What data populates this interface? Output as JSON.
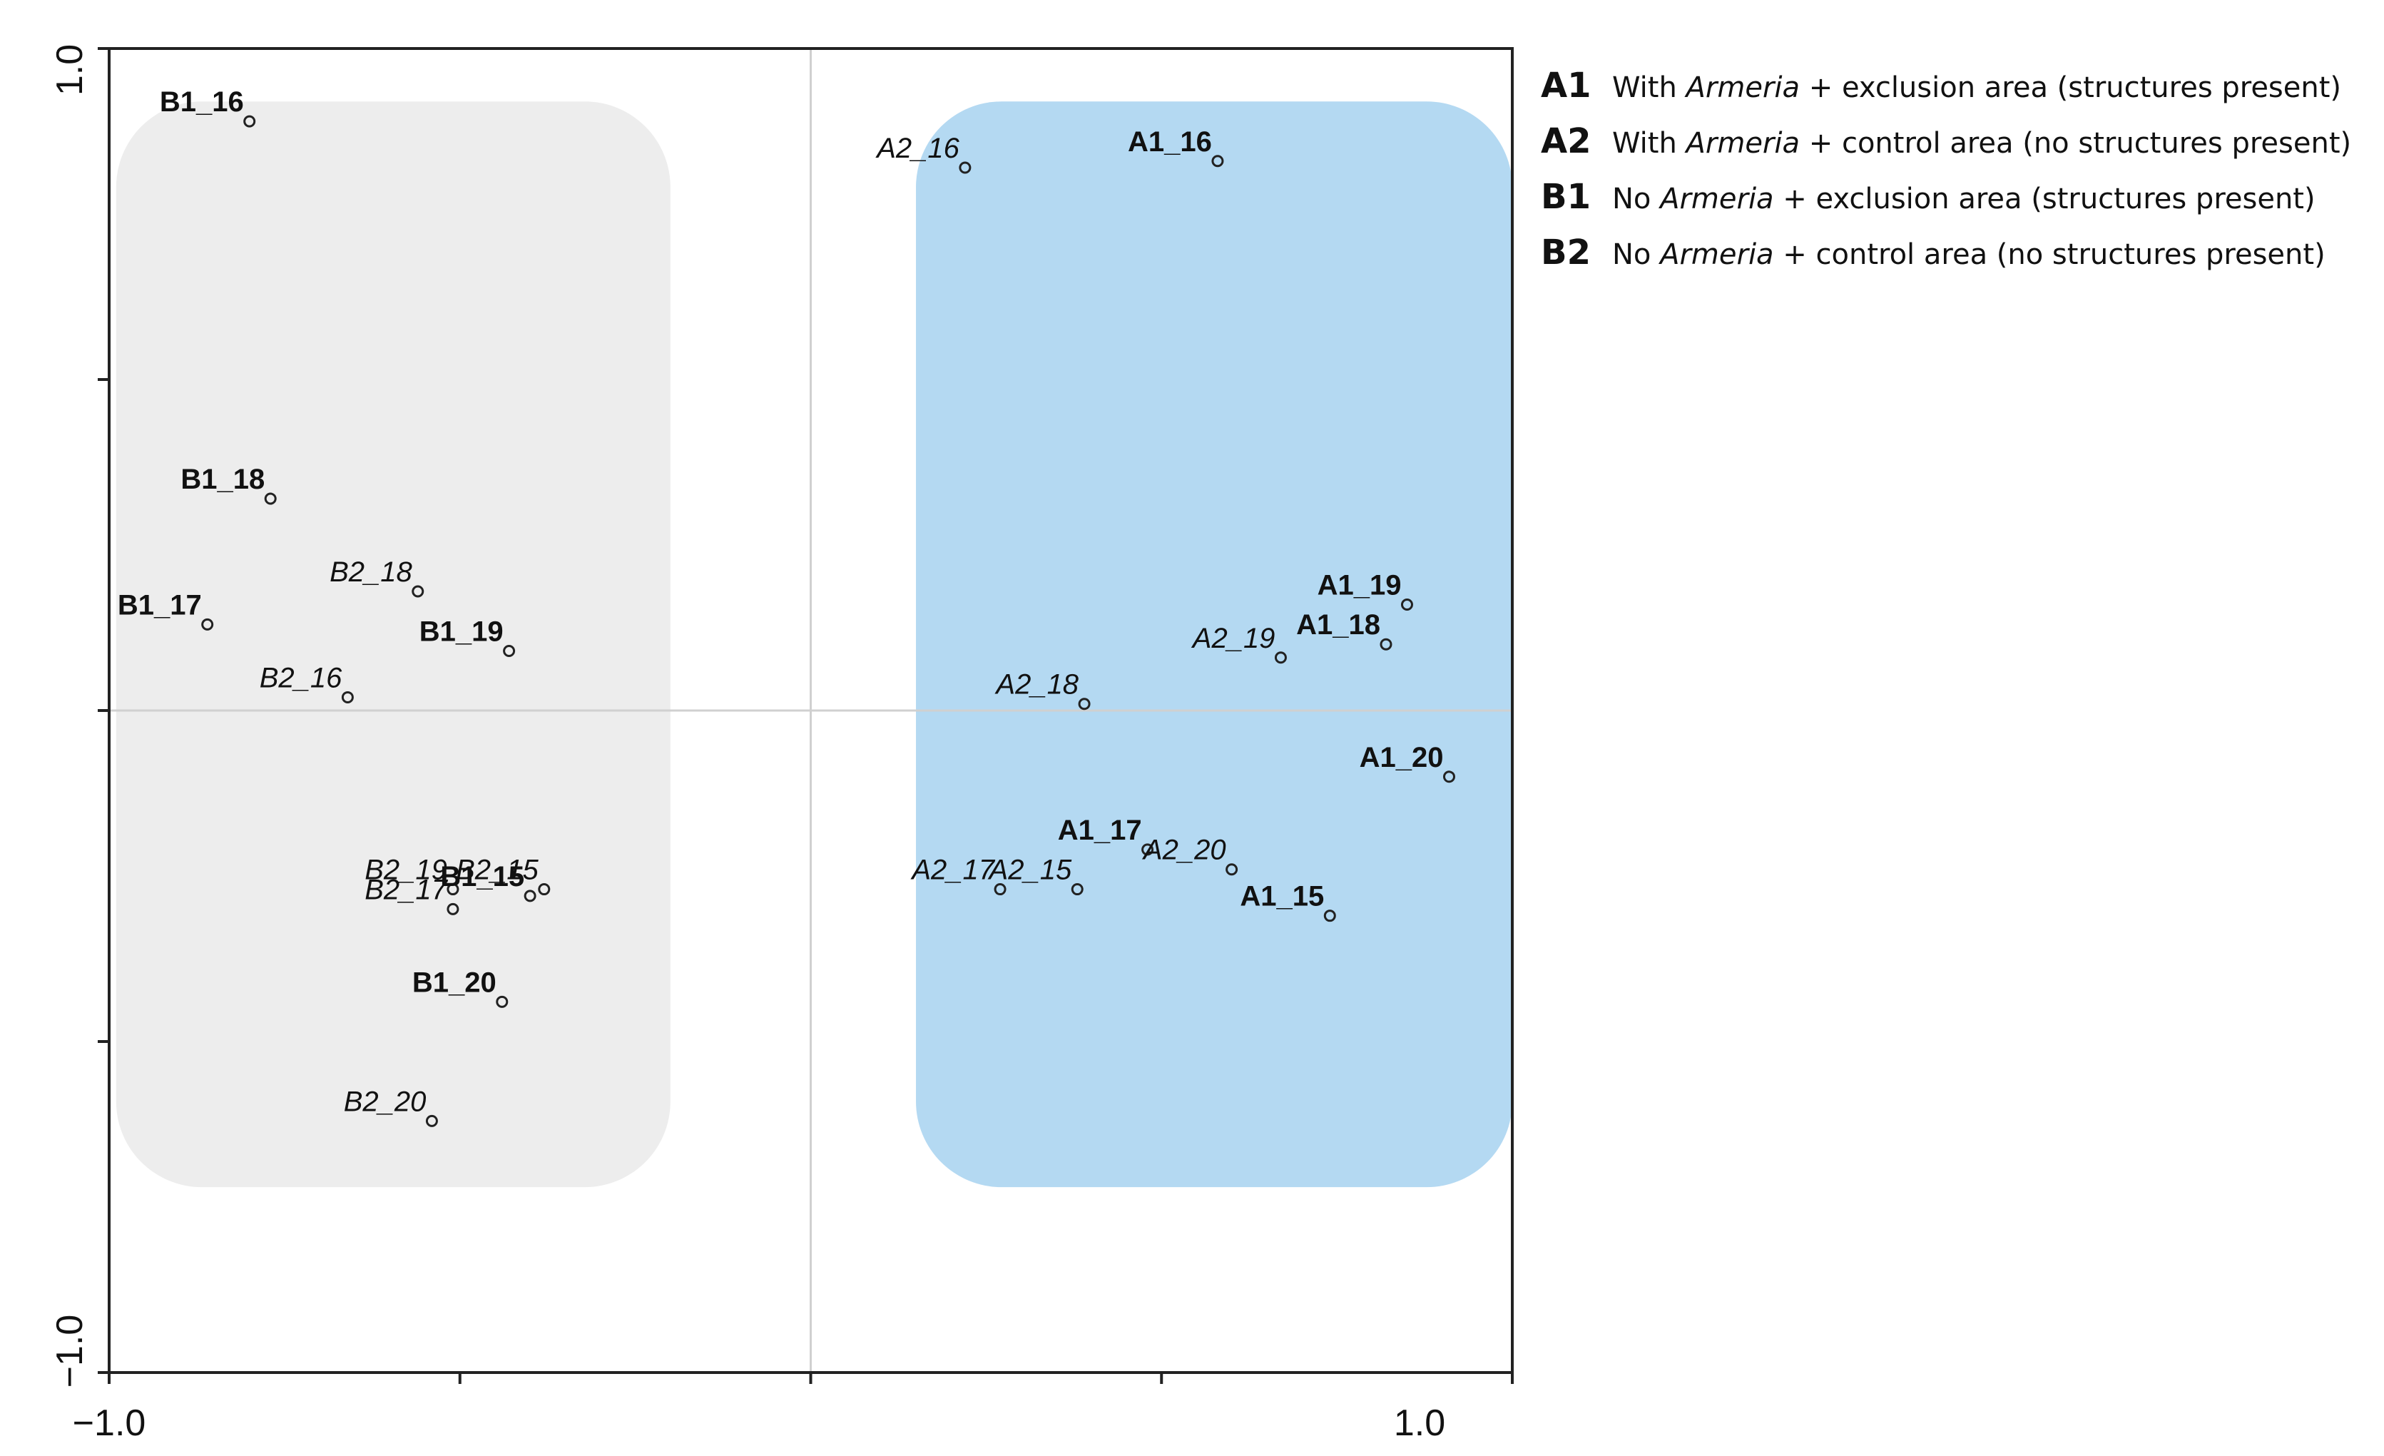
{
  "chart_data": {
    "type": "scatter",
    "xlim": [
      -1.0,
      1.0
    ],
    "ylim": [
      -1.0,
      1.0
    ],
    "x_tick_labels": [
      "−1.0",
      "1.0"
    ],
    "y_tick_labels": [
      "1.0",
      "−1.0"
    ],
    "grid": false,
    "reference_lines": {
      "x": 0,
      "y": 0
    },
    "legend_position": "top-right",
    "regions": [
      {
        "id": "left-region",
        "color": "#ededed",
        "x": [
          -0.99,
          -0.2
        ],
        "y": [
          -0.72,
          0.92
        ]
      },
      {
        "id": "right-region",
        "color": "#b4d9f2",
        "x": [
          0.15,
          1.0
        ],
        "y": [
          -0.72,
          0.92
        ]
      }
    ],
    "points": [
      {
        "label": "B1_16",
        "x": -0.8,
        "y": 0.89,
        "bold": true,
        "italic": false
      },
      {
        "label": "B1_18",
        "x": -0.77,
        "y": 0.32,
        "bold": true,
        "italic": false
      },
      {
        "label": "B1_17",
        "x": -0.86,
        "y": 0.13,
        "bold": true,
        "italic": false
      },
      {
        "label": "B1_19",
        "x": -0.43,
        "y": 0.09,
        "bold": true,
        "italic": false
      },
      {
        "label": "B2_18",
        "x": -0.56,
        "y": 0.18,
        "bold": false,
        "italic": true
      },
      {
        "label": "B2_16",
        "x": -0.66,
        "y": 0.02,
        "bold": false,
        "italic": true
      },
      {
        "label": "B2_19",
        "x": -0.51,
        "y": -0.27,
        "bold": false,
        "italic": true
      },
      {
        "label": "B2_17",
        "x": -0.51,
        "y": -0.3,
        "bold": false,
        "italic": true
      },
      {
        "label": "B2_15",
        "x": -0.38,
        "y": -0.27,
        "bold": false,
        "italic": true
      },
      {
        "label": "B1_15",
        "x": -0.4,
        "y": -0.28,
        "bold": true,
        "italic": false
      },
      {
        "label": "B1_20",
        "x": -0.44,
        "y": -0.44,
        "bold": true,
        "italic": false
      },
      {
        "label": "B2_20",
        "x": -0.54,
        "y": -0.62,
        "bold": false,
        "italic": true
      },
      {
        "label": "A2_16",
        "x": 0.22,
        "y": 0.82,
        "bold": false,
        "italic": true
      },
      {
        "label": "A1_16",
        "x": 0.58,
        "y": 0.83,
        "bold": true,
        "italic": false
      },
      {
        "label": "A1_19",
        "x": 0.85,
        "y": 0.16,
        "bold": true,
        "italic": false
      },
      {
        "label": "A1_18",
        "x": 0.82,
        "y": 0.1,
        "bold": true,
        "italic": false
      },
      {
        "label": "A2_19",
        "x": 0.67,
        "y": 0.08,
        "bold": false,
        "italic": true
      },
      {
        "label": "A2_18",
        "x": 0.39,
        "y": 0.01,
        "bold": false,
        "italic": true
      },
      {
        "label": "A1_20",
        "x": 0.91,
        "y": -0.1,
        "bold": true,
        "italic": false
      },
      {
        "label": "A1_17",
        "x": 0.48,
        "y": -0.21,
        "bold": true,
        "italic": false
      },
      {
        "label": "A2_20",
        "x": 0.6,
        "y": -0.24,
        "bold": false,
        "italic": true
      },
      {
        "label": "A2_17",
        "x": 0.27,
        "y": -0.27,
        "bold": false,
        "italic": true
      },
      {
        "label": "A2_15",
        "x": 0.38,
        "y": -0.27,
        "bold": false,
        "italic": true
      },
      {
        "label": "A1_15",
        "x": 0.74,
        "y": -0.31,
        "bold": true,
        "italic": false
      }
    ]
  },
  "legend": [
    {
      "code": "A1",
      "prefix": "With ",
      "species": "Armeria",
      "suffix": " + exclusion area (structures present)"
    },
    {
      "code": "A2",
      "prefix": "With ",
      "species": "Armeria",
      "suffix": " + control area (no structures present)"
    },
    {
      "code": "B1",
      "prefix": "No ",
      "species": "Armeria",
      "suffix": " + exclusion area (structures present)"
    },
    {
      "code": "B2",
      "prefix": "No ",
      "species": "Armeria",
      "suffix": " + control area (no structures present)"
    }
  ]
}
